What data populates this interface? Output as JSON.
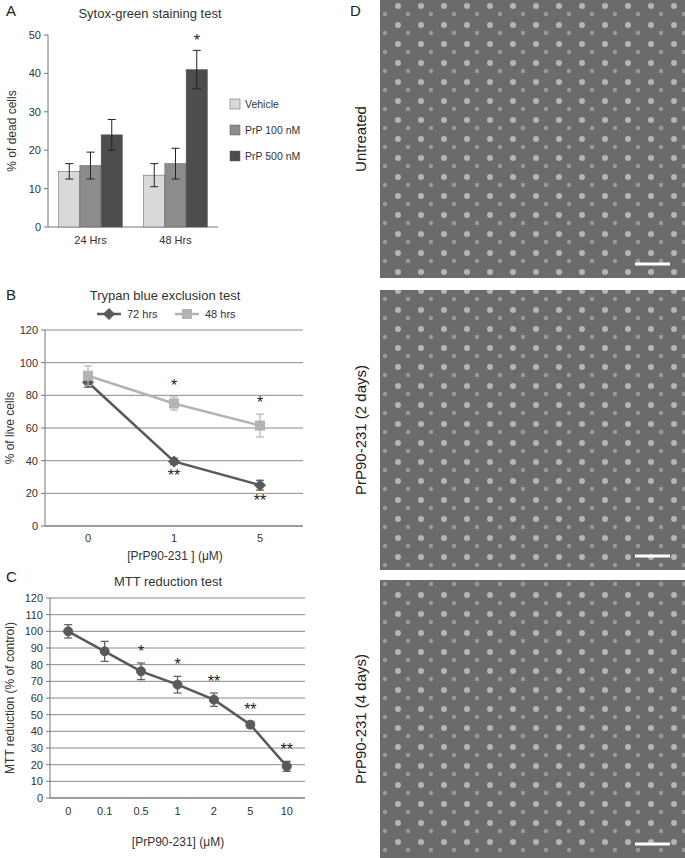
{
  "chart_data": [
    {
      "panel_label": "A",
      "type": "bar",
      "title": "Sytox-green staining test",
      "y_label": "% of dead cells",
      "categories": [
        "24 Hrs",
        "48 Hrs"
      ],
      "series": [
        {
          "name": "Vehicle",
          "color": "#d9d9d9",
          "values": [
            14.5,
            13.5
          ],
          "errors": [
            2,
            3
          ]
        },
        {
          "name": "PrP 100 nM",
          "color": "#8c8c8c",
          "values": [
            16,
            16.5
          ],
          "errors": [
            3.5,
            4
          ]
        },
        {
          "name": "PrP 500 nM",
          "color": "#4d4d4d",
          "values": [
            24,
            41
          ],
          "errors": [
            4,
            5
          ],
          "significance": [
            null,
            "*"
          ]
        }
      ],
      "ylim": [
        0,
        50
      ],
      "yticks": [
        0,
        10,
        20,
        30,
        40,
        50
      ],
      "grid": false,
      "legend": "right"
    },
    {
      "panel_label": "B",
      "type": "line",
      "title": "Trypan blue exclusion test",
      "y_label": "% of live cells",
      "x_label": "[PrP90-231 ] (μM)",
      "categories": [
        "0",
        "1",
        "5"
      ],
      "series": [
        {
          "name": "72 hrs",
          "color": "#595959",
          "marker": "diamond",
          "values": [
            88,
            39.5,
            25
          ],
          "errors": [
            3,
            2,
            3
          ],
          "significance": [
            null,
            "**",
            "**"
          ]
        },
        {
          "name": "48 hrs",
          "color": "#b3b3b3",
          "marker": "square",
          "values": [
            92,
            75,
            61.5
          ],
          "errors": [
            6,
            4,
            7
          ],
          "significance": [
            null,
            "*",
            "*"
          ]
        }
      ],
      "ylim": [
        0,
        120
      ],
      "yticks": [
        0,
        20,
        40,
        60,
        80,
        100,
        120
      ],
      "grid": true,
      "legend": "top"
    },
    {
      "panel_label": "C",
      "type": "line",
      "title": "MTT reduction test",
      "y_label": "MTT reduction (% of control)",
      "x_label": "[PrP90-231] (μM)",
      "categories": [
        "0",
        "0.1",
        "0.5",
        "1",
        "2",
        "5",
        "10"
      ],
      "values": [
        100,
        88,
        76,
        68,
        59,
        44,
        19
      ],
      "errors": [
        4,
        6,
        5,
        5,
        4,
        2,
        3
      ],
      "significance": [
        null,
        null,
        "*",
        "*",
        "**",
        "**",
        "**"
      ],
      "color": "#595959",
      "marker": "circle",
      "ylim": [
        0,
        120
      ],
      "yticks": [
        0,
        10,
        20,
        30,
        40,
        50,
        60,
        70,
        80,
        90,
        100,
        110,
        120
      ],
      "grid": true
    }
  ],
  "micrographs": {
    "panel_label": "D",
    "labels": [
      "Untreated",
      "PrP90-231 (2 days)",
      "PrP90-231 (4 days)"
    ]
  }
}
